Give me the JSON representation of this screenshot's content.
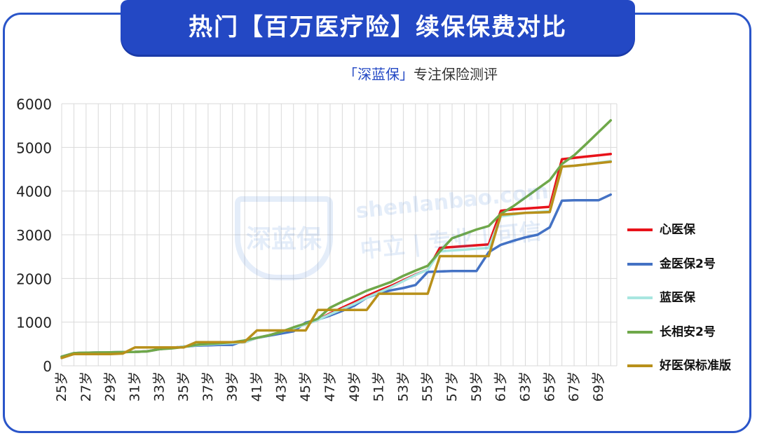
{
  "header": {
    "title": "热门【百万医疗险】续保保费对比",
    "subtitle_brand": "「深蓝保」",
    "subtitle_rest": "专注保险测评"
  },
  "watermark": {
    "shield_text": "深蓝保",
    "domain": "shenlanbao.com",
    "slogan": "中立 | 专业 | 可信"
  },
  "colors": {
    "frame": "#2a55c9",
    "banner": "#2348c4",
    "grid": "#d9d9d9"
  },
  "chart_data": {
    "type": "line",
    "title": "热门【百万医疗险】续保保费对比",
    "xlabel": "",
    "ylabel": "",
    "ylim": [
      0,
      6000
    ],
    "yticks": [
      "0",
      "1000",
      "2000",
      "3000",
      "4000",
      "5000",
      "6000"
    ],
    "grid": true,
    "legend_position": "right",
    "x": [
      25,
      26,
      27,
      28,
      29,
      30,
      31,
      32,
      33,
      34,
      35,
      36,
      37,
      38,
      39,
      40,
      41,
      42,
      43,
      44,
      45,
      46,
      47,
      48,
      49,
      50,
      51,
      52,
      53,
      54,
      55,
      56,
      57,
      58,
      59,
      60,
      61,
      62,
      63,
      64,
      65,
      66,
      67,
      68,
      69,
      70
    ],
    "categories": [
      "25岁",
      "26岁",
      "27岁",
      "28岁",
      "29岁",
      "30岁",
      "31岁",
      "32岁",
      "33岁",
      "34岁",
      "35岁",
      "36岁",
      "37岁",
      "38岁",
      "39岁",
      "40岁",
      "41岁",
      "42岁",
      "43岁",
      "44岁",
      "45岁",
      "46岁",
      "47岁",
      "48岁",
      "49岁",
      "50岁",
      "51岁",
      "52岁",
      "53岁",
      "54岁",
      "55岁",
      "56岁",
      "57岁",
      "58岁",
      "59岁",
      "60岁",
      "61岁",
      "62岁",
      "63岁",
      "64岁",
      "65岁",
      "66岁",
      "67岁",
      "68岁",
      "69岁",
      "70岁"
    ],
    "xtick_labels": [
      "25岁",
      "27岁",
      "29岁",
      "31岁",
      "33岁",
      "35岁",
      "37岁",
      "39岁",
      "41岁",
      "43岁",
      "45岁",
      "47岁",
      "49岁",
      "51岁",
      "53岁",
      "55岁",
      "57岁",
      "59岁",
      "61岁",
      "63岁",
      "65岁",
      "67岁",
      "69岁"
    ],
    "series": [
      {
        "name": "心医保",
        "color": "#e8121a",
        "values": [
          210,
          290,
          300,
          305,
          310,
          315,
          320,
          330,
          380,
          410,
          440,
          470,
          490,
          505,
          520,
          540,
          640,
          700,
          780,
          860,
          950,
          1050,
          1200,
          1330,
          1460,
          1600,
          1720,
          1830,
          1960,
          2090,
          2200,
          2700,
          2720,
          2740,
          2760,
          2780,
          3550,
          3580,
          3600,
          3620,
          3640,
          4730,
          4760,
          4790,
          4820,
          4850
        ]
      },
      {
        "name": "金医保2号",
        "color": "#4472c4",
        "values": [
          210,
          290,
          300,
          305,
          310,
          315,
          320,
          330,
          380,
          410,
          440,
          460,
          470,
          480,
          480,
          580,
          640,
          690,
          740,
          790,
          990,
          1060,
          1150,
          1260,
          1380,
          1560,
          1660,
          1730,
          1780,
          1850,
          2150,
          2160,
          2170,
          2170,
          2170,
          2600,
          2770,
          2860,
          2940,
          3000,
          3170,
          3780,
          3790,
          3790,
          3790,
          3920
        ]
      },
      {
        "name": "蓝医保",
        "color": "#a8e6e0",
        "values": [
          210,
          290,
          300,
          305,
          310,
          315,
          320,
          330,
          380,
          410,
          440,
          470,
          490,
          505,
          520,
          540,
          640,
          700,
          780,
          860,
          950,
          1050,
          1180,
          1300,
          1420,
          1560,
          1680,
          1800,
          1940,
          2080,
          2200,
          2620,
          2640,
          2660,
          2680,
          2700,
          3420,
          3460,
          3500,
          3520,
          3540,
          4560,
          4580,
          4610,
          4650,
          4690
        ]
      },
      {
        "name": "长相安2号",
        "color": "#6fa84a",
        "values": [
          210,
          290,
          300,
          305,
          310,
          315,
          320,
          330,
          380,
          400,
          430,
          480,
          500,
          520,
          540,
          580,
          640,
          700,
          780,
          880,
          970,
          1080,
          1330,
          1470,
          1590,
          1720,
          1820,
          1920,
          2060,
          2180,
          2290,
          2620,
          2920,
          3020,
          3120,
          3200,
          3480,
          3650,
          3850,
          4050,
          4250,
          4620,
          4820,
          5080,
          5350,
          5620
        ]
      },
      {
        "name": "好医保标准版",
        "color": "#b8901a",
        "values": [
          180,
          270,
          270,
          270,
          270,
          280,
          420,
          420,
          420,
          420,
          420,
          540,
          540,
          540,
          540,
          550,
          810,
          810,
          810,
          810,
          810,
          1280,
          1280,
          1280,
          1280,
          1280,
          1650,
          1650,
          1650,
          1650,
          1650,
          2510,
          2510,
          2510,
          2510,
          2510,
          3460,
          3480,
          3500,
          3510,
          3520,
          4560,
          4580,
          4610,
          4640,
          4670
        ]
      }
    ]
  }
}
